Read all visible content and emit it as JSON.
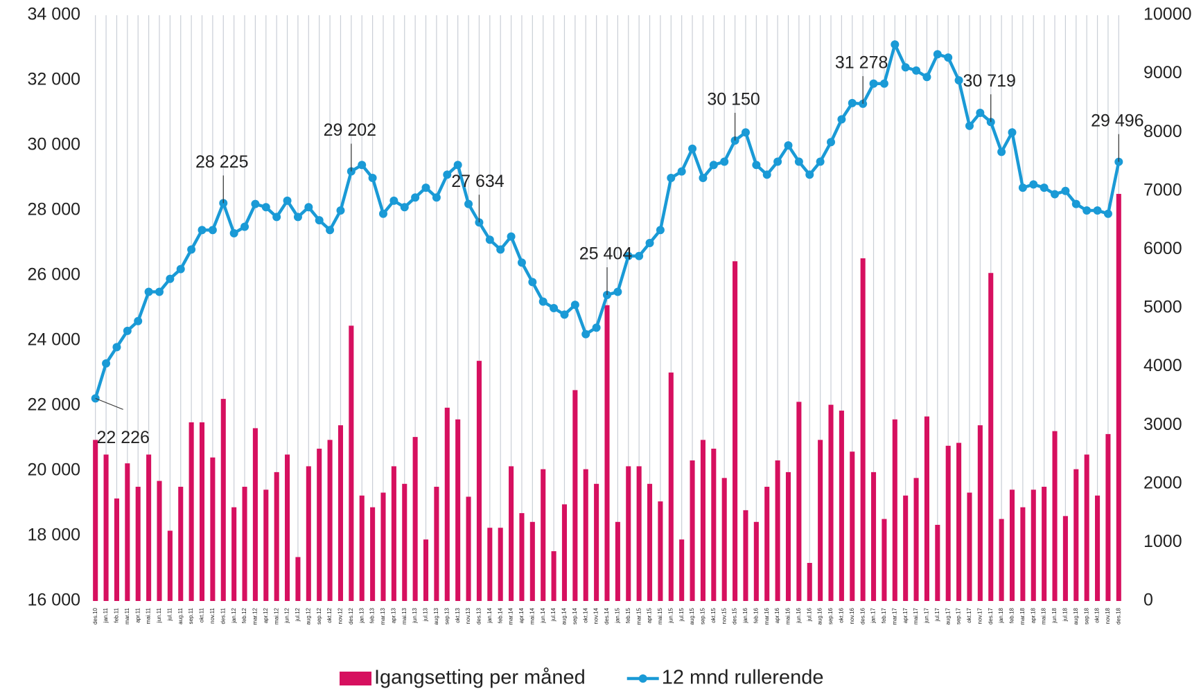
{
  "chart_data": {
    "type": "combo",
    "categories": [
      "des.10",
      "jan.11",
      "feb.11",
      "mar.11",
      "apr.11",
      "mai.11",
      "jun.11",
      "jul.11",
      "aug.11",
      "sep.11",
      "okt.11",
      "nov.11",
      "des.11",
      "jan.12",
      "feb.12",
      "mar.12",
      "apr.12",
      "mai.12",
      "jun.12",
      "jul.12",
      "aug.12",
      "sep.12",
      "okt.12",
      "nov.12",
      "des.12",
      "jan.13",
      "feb.13",
      "mar.13",
      "apr.13",
      "mai.13",
      "jun.13",
      "jul.13",
      "aug.13",
      "sep.13",
      "okt.13",
      "nov.13",
      "des.13",
      "jan.14",
      "feb.14",
      "mar.14",
      "apr.14",
      "mai.14",
      "jun.14",
      "jul.14",
      "aug.14",
      "sep.14",
      "okt.14",
      "nov.14",
      "des.14",
      "jan.15",
      "feb.15",
      "mar.15",
      "apr.15",
      "mai.15",
      "jun.15",
      "jul.15",
      "aug.15",
      "sep.15",
      "okt.15",
      "nov.15",
      "des.15",
      "jan.16",
      "feb.16",
      "mar.16",
      "apr.16",
      "mai.16",
      "jun.16",
      "jul.16",
      "aug.16",
      "sep.16",
      "okt.16",
      "nov.16",
      "des.16",
      "jan.17",
      "feb.17",
      "mar.17",
      "apr.17",
      "mai.17",
      "jun.17",
      "jul.17",
      "aug.17",
      "sep.17",
      "okt.17",
      "nov.17",
      "des.17",
      "jan.18",
      "feb.18",
      "mar.18",
      "apr.18",
      "mai.18",
      "jun.18",
      "jul.18",
      "aug.18",
      "sep.18",
      "okt.18",
      "nov.18",
      "des.18"
    ],
    "series": [
      {
        "name": "Igangsetting per måned",
        "type": "bar",
        "color": "#d6105f",
        "axis": "y2",
        "values": [
          2750,
          2500,
          1750,
          2350,
          1950,
          2500,
          2050,
          1200,
          1950,
          3050,
          3050,
          2450,
          3450,
          1600,
          1950,
          2950,
          1900,
          2200,
          2500,
          750,
          2300,
          2600,
          2750,
          3000,
          4700,
          1800,
          1600,
          1850,
          2300,
          2000,
          2800,
          1050,
          1950,
          3300,
          3100,
          1780,
          4100,
          1250,
          1250,
          2300,
          1500,
          1350,
          2250,
          850,
          1650,
          3600,
          2250,
          2000,
          5050,
          1350,
          2300,
          2300,
          2000,
          1700,
          3900,
          1050,
          2400,
          2750,
          2600,
          2100,
          5800,
          1550,
          1350,
          1950,
          2400,
          2200,
          3400,
          650,
          2750,
          3350,
          3250,
          2550,
          5850,
          2200,
          1400,
          3100,
          1800,
          2100,
          3150,
          1300,
          2650,
          2700,
          1850,
          3000,
          5600,
          1400,
          1900,
          1600,
          1900,
          1950,
          2900,
          1450,
          2250,
          2500,
          1800,
          2850,
          6950
        ]
      },
      {
        "name": "12 mnd rullerende",
        "type": "line",
        "color": "#1a9ad6",
        "values": [
          22226,
          23300,
          23800,
          24300,
          24600,
          25500,
          25500,
          25900,
          26200,
          26800,
          27400,
          27400,
          28225,
          27300,
          27500,
          28200,
          28100,
          27800,
          28300,
          27800,
          28100,
          27700,
          27400,
          28000,
          29202,
          29400,
          29000,
          27900,
          28300,
          28100,
          28400,
          28700,
          28400,
          29100,
          29400,
          28200,
          27634,
          27100,
          26800,
          27200,
          26400,
          25800,
          25200,
          25000,
          24800,
          25100,
          24200,
          24400,
          25404,
          25500,
          26600,
          26600,
          27000,
          27400,
          29000,
          29200,
          29900,
          29000,
          29400,
          29500,
          30150,
          30400,
          29400,
          29100,
          29500,
          30000,
          29500,
          29100,
          29500,
          30100,
          30800,
          31300,
          31278,
          31900,
          31900,
          33100,
          32400,
          32300,
          32100,
          32800,
          32700,
          32000,
          30600,
          31000,
          30719,
          29800,
          30400,
          28700,
          28800,
          28700,
          28500,
          28600,
          28200,
          28000,
          28000,
          27900,
          29496
        ],
        "value_labels": [
          "22 226",
          null,
          null,
          null,
          null,
          null,
          null,
          null,
          null,
          null,
          null,
          null,
          "28 225",
          null,
          null,
          null,
          null,
          null,
          null,
          null,
          null,
          null,
          null,
          null,
          "29 202",
          null,
          null,
          null,
          null,
          null,
          null,
          null,
          null,
          null,
          null,
          null,
          "27 634",
          null,
          null,
          null,
          null,
          null,
          null,
          null,
          null,
          null,
          null,
          null,
          "25 404",
          null,
          null,
          null,
          null,
          null,
          null,
          null,
          null,
          null,
          null,
          null,
          "30 150",
          null,
          null,
          null,
          null,
          null,
          null,
          null,
          null,
          null,
          null,
          null,
          "31 278",
          null,
          null,
          null,
          null,
          null,
          null,
          null,
          null,
          null,
          null,
          null,
          "30 719",
          null,
          null,
          null,
          null,
          null,
          null,
          null,
          null,
          null,
          null,
          null,
          "29 496"
        ]
      }
    ],
    "ylim": [
      16000,
      34000
    ],
    "yticks": [
      {
        "value": 16000,
        "label": "16 000"
      },
      {
        "value": 18000,
        "label": "18 000"
      },
      {
        "value": 20000,
        "label": "20 000"
      },
      {
        "value": 22000,
        "label": "22 000"
      },
      {
        "value": 24000,
        "label": "24 000"
      },
      {
        "value": 26000,
        "label": "26 000"
      },
      {
        "value": 28000,
        "label": "28 000"
      },
      {
        "value": 30000,
        "label": "30 000"
      },
      {
        "value": 32000,
        "label": "32 000"
      },
      {
        "value": 34000,
        "label": "34 000"
      }
    ],
    "y2lim": [
      0,
      10000
    ],
    "y2ticks": [
      0,
      1000,
      2000,
      3000,
      4000,
      5000,
      6000,
      7000,
      8000,
      9000,
      10000
    ],
    "grid": "x",
    "legend": "bottom"
  }
}
